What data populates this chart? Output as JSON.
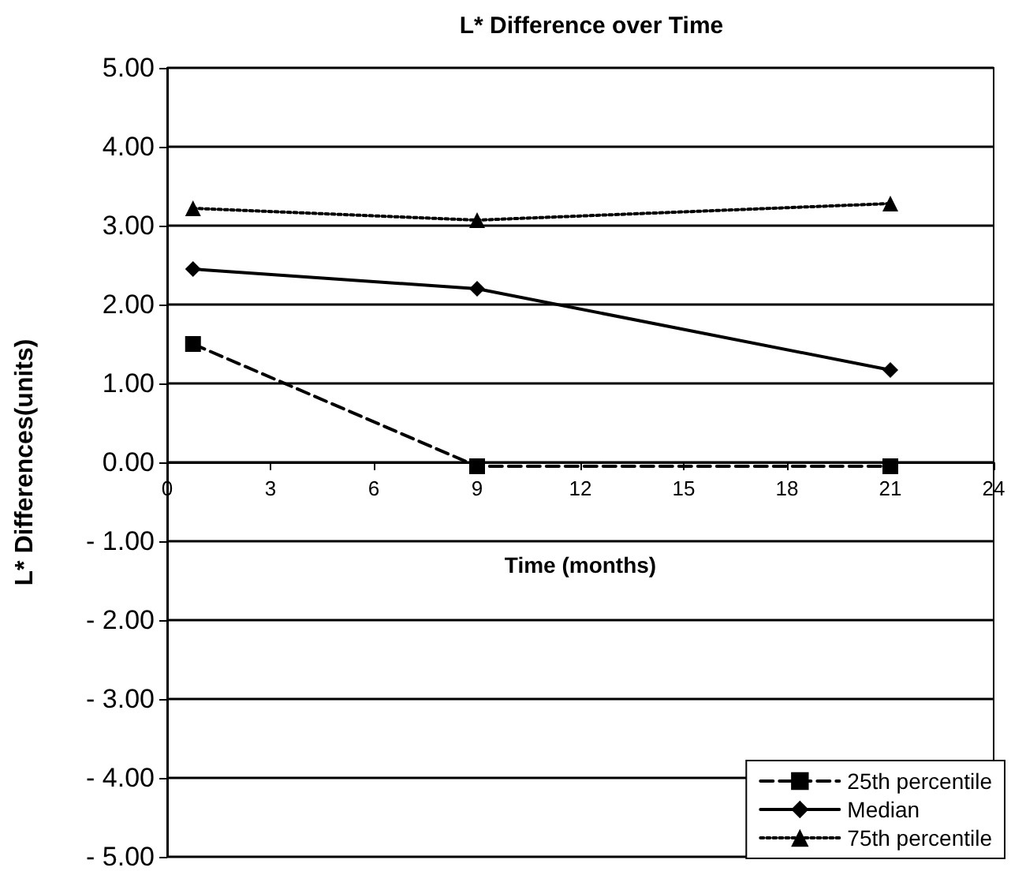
{
  "chart_data": {
    "type": "line",
    "title": "L* Difference over Time",
    "xlabel": "Time (months)",
    "ylabel": "L* Differences(units)",
    "xlim": [
      0,
      24
    ],
    "xticks": [
      0,
      3,
      6,
      9,
      12,
      15,
      18,
      21,
      24
    ],
    "ylim": [
      -5,
      5
    ],
    "yticks": [
      {
        "value": -5,
        "label": "- 5.00"
      },
      {
        "value": -4,
        "label": "- 4.00"
      },
      {
        "value": -3,
        "label": "- 3.00"
      },
      {
        "value": -2,
        "label": "- 2.00"
      },
      {
        "value": -1,
        "label": "- 1.00"
      },
      {
        "value": 0,
        "label": "0.00"
      },
      {
        "value": 1,
        "label": "1.00"
      },
      {
        "value": 2,
        "label": "2.00"
      },
      {
        "value": 3,
        "label": "3.00"
      },
      {
        "value": 4,
        "label": "4.00"
      },
      {
        "value": 5,
        "label": "5.00"
      }
    ],
    "grid": "y",
    "legend": "bottom right",
    "x": [
      0.75,
      9,
      21
    ],
    "series": [
      {
        "name": "25th percentile",
        "color": "#000000",
        "values": [
          1.5,
          -0.05,
          -0.05
        ],
        "marker": "square",
        "line_style": "dashed"
      },
      {
        "name": "Median",
        "color": "#000000",
        "values": [
          2.45,
          2.2,
          1.17
        ],
        "marker": "diamond",
        "line_style": "solid"
      },
      {
        "name": "75th percentile",
        "color": "#000000",
        "values": [
          3.22,
          3.07,
          3.28
        ],
        "marker": "triangle",
        "line_style": "dotted"
      }
    ]
  }
}
